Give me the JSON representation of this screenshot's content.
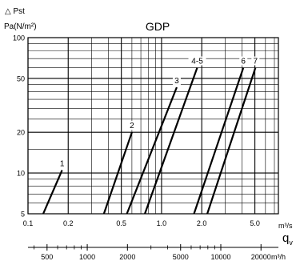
{
  "chart_data": {
    "type": "line",
    "title": "GDP",
    "ylabel_line1": "△ Pst",
    "ylabel_line2": "Pa(N/m²)",
    "xlabel_symbol": "q",
    "xlabel_subscript": "v",
    "x_unit_primary": "m³/s",
    "x_unit_secondary": "m³/h",
    "x_scale": "log",
    "y_scale": "log",
    "xlim": [
      0.1,
      7.5
    ],
    "ylim": [
      5,
      100
    ],
    "grid": true,
    "x_ticks": [
      {
        "value": 0.1,
        "label": "0.1"
      },
      {
        "value": 0.2,
        "label": "0.2"
      },
      {
        "value": 0.5,
        "label": "0.5"
      },
      {
        "value": 1.0,
        "label": "1.0"
      },
      {
        "value": 2.0,
        "label": "2.0"
      },
      {
        "value": 5.0,
        "label": "5.0"
      }
    ],
    "x2_ticks": [
      {
        "value": 500,
        "label": "500"
      },
      {
        "value": 1000,
        "label": "1000"
      },
      {
        "value": 2000,
        "label": "2000"
      },
      {
        "value": 5000,
        "label": "5000"
      },
      {
        "value": 10000,
        "label": "10000"
      },
      {
        "value": 20000,
        "label": "20000"
      }
    ],
    "y_ticks": [
      {
        "value": 5,
        "label": "5"
      },
      {
        "value": 10,
        "label": "10"
      },
      {
        "value": 20,
        "label": "20"
      },
      {
        "value": 50,
        "label": "50"
      },
      {
        "value": 100,
        "label": "100"
      }
    ],
    "series": [
      {
        "name": "1",
        "x": [
          0.13,
          0.18
        ],
        "y": [
          5,
          10.5
        ]
      },
      {
        "name": "2",
        "x": [
          0.37,
          0.6
        ],
        "y": [
          5,
          20
        ]
      },
      {
        "name": "3",
        "x": [
          0.55,
          1.3
        ],
        "y": [
          5,
          43
        ]
      },
      {
        "name": "4-5",
        "x": [
          0.75,
          1.85
        ],
        "y": [
          5,
          60
        ]
      },
      {
        "name": "6",
        "x": [
          1.75,
          4.1
        ],
        "y": [
          5,
          60
        ]
      },
      {
        "name": "7",
        "x": [
          2.2,
          5.05
        ],
        "y": [
          5,
          60
        ]
      }
    ]
  }
}
